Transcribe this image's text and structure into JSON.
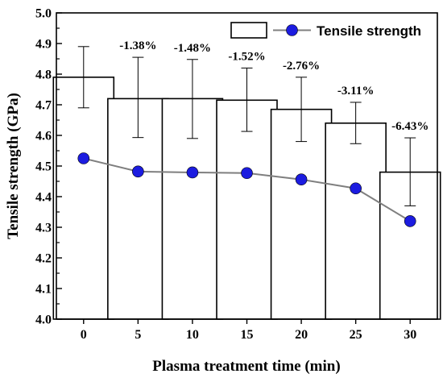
{
  "chart_data": {
    "type": "bar",
    "title": "",
    "xlabel": "Plasma treatment time (min)",
    "ylabel": "Tensile strength (GPa)",
    "categories": [
      "0",
      "5",
      "10",
      "15",
      "20",
      "25",
      "30"
    ],
    "ylim": [
      4.0,
      5.0
    ],
    "yticks": [
      "4.0",
      "4.1",
      "4.2",
      "4.3",
      "4.4",
      "4.5",
      "4.6",
      "4.7",
      "4.8",
      "4.9",
      "5.0"
    ],
    "grid": false,
    "bars": {
      "values": [
        4.79,
        4.72,
        4.72,
        4.715,
        4.685,
        4.64,
        4.48
      ],
      "error_upper": [
        4.89,
        4.855,
        4.848,
        4.82,
        4.79,
        4.708,
        4.592
      ],
      "error_lower": [
        4.69,
        4.593,
        4.59,
        4.613,
        4.58,
        4.573,
        4.37
      ],
      "fill": "#ffffff",
      "stroke": "#000000"
    },
    "series": [
      {
        "name": "Tensile strength",
        "type": "line",
        "values": [
          4.525,
          4.482,
          4.479,
          4.477,
          4.456,
          4.427,
          4.32
        ],
        "marker_color": "#1c1ce0",
        "line_color": "#7f7f7f"
      }
    ],
    "annotations": [
      {
        "category": "5",
        "text": "-1.38%"
      },
      {
        "category": "10",
        "text": "-1.48%"
      },
      {
        "category": "15",
        "text": "-1.52%"
      },
      {
        "category": "20",
        "text": "-2.76%"
      },
      {
        "category": "25",
        "text": "-3.11%"
      },
      {
        "category": "30",
        "text": "-6.43%"
      }
    ],
    "legend_position": "top-right"
  }
}
